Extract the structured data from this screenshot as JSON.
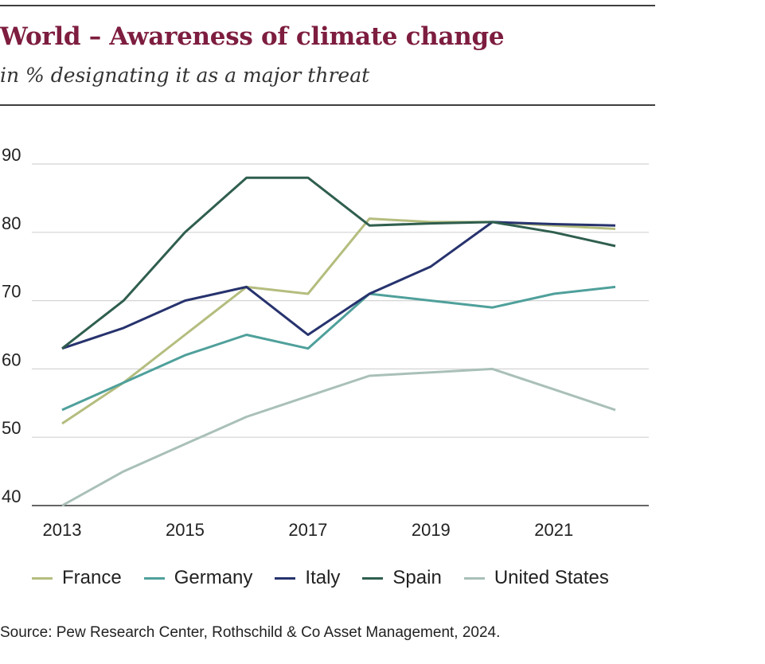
{
  "header": {
    "title": "World – Awareness of climate change",
    "subtitle": "in % designating it as a major threat"
  },
  "source": "Source: Pew Research Center, Rothschild & Co Asset Management, 2024.",
  "chart_data": {
    "type": "line",
    "title": "World – Awareness of climate change",
    "subtitle": "in % designating it as a major threat",
    "xlabel": "",
    "ylabel": "",
    "x": [
      2013,
      2014,
      2015,
      2016,
      2017,
      2018,
      2019,
      2020,
      2021,
      2022
    ],
    "xticks": [
      2013,
      2015,
      2017,
      2019,
      2021
    ],
    "yticks": [
      40,
      50,
      60,
      70,
      80,
      90
    ],
    "xlim": [
      2013,
      2022
    ],
    "ylim": [
      40,
      90
    ],
    "grid": true,
    "legend_position": "bottom",
    "series": [
      {
        "name": "France",
        "color": "#b5bd7e",
        "values": [
          52,
          58,
          65,
          72,
          71,
          82,
          81.5,
          81.5,
          81,
          80.5
        ]
      },
      {
        "name": "Germany",
        "color": "#4fa09b",
        "values": [
          54,
          58,
          62,
          65,
          63,
          71,
          70,
          69,
          71,
          72
        ]
      },
      {
        "name": "Italy",
        "color": "#27336e",
        "values": [
          63,
          66,
          70,
          72,
          65,
          71,
          75,
          81.5,
          81.2,
          81
        ]
      },
      {
        "name": "Spain",
        "color": "#2f5e4f",
        "values": [
          63,
          70,
          80,
          88,
          88,
          81,
          81.3,
          81.5,
          80,
          78
        ]
      },
      {
        "name": "United States",
        "color": "#a9c0b8",
        "values": [
          40,
          45,
          49,
          53,
          56,
          59,
          59.5,
          60,
          57,
          54
        ]
      }
    ]
  }
}
